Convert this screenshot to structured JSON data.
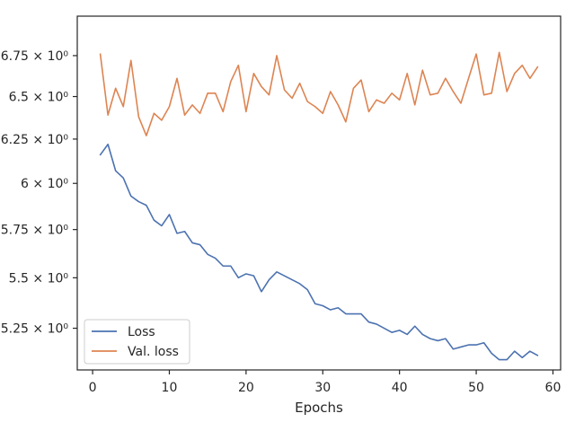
{
  "chart_data": {
    "type": "line",
    "title": "",
    "xlabel": "Epochs",
    "ylabel": "",
    "yscale": "log",
    "xlim": [
      -2,
      61
    ],
    "ylim": [
      5.052,
      7.0
    ],
    "x_ticks": [
      0,
      10,
      20,
      30,
      40,
      50,
      60
    ],
    "x_tick_labels": [
      "0",
      "10",
      "20",
      "30",
      "40",
      "50",
      "60"
    ],
    "y_ticks": [
      5.25,
      5.5,
      5.75,
      6.0,
      6.25,
      6.5,
      6.75
    ],
    "y_tick_labels": [
      "5.25 × 10⁰",
      "5.5 × 10⁰",
      "5.75 × 10⁰",
      "6 × 10⁰",
      "6.25 × 10⁰",
      "6.5 × 10⁰",
      "6.75 × 10⁰"
    ],
    "grid": false,
    "legend_position": "lower-left",
    "x": [
      1,
      2,
      3,
      4,
      5,
      6,
      7,
      8,
      9,
      10,
      11,
      12,
      13,
      14,
      15,
      16,
      17,
      18,
      19,
      20,
      21,
      22,
      23,
      24,
      25,
      26,
      27,
      28,
      29,
      30,
      31,
      32,
      33,
      34,
      35,
      36,
      37,
      38,
      39,
      40,
      41,
      42,
      43,
      44,
      45,
      46,
      47,
      48,
      49,
      50,
      51,
      52,
      53,
      54,
      55,
      56,
      57,
      58
    ],
    "series": [
      {
        "name": "Loss",
        "color": "#4c72b0",
        "values": [
          6.16,
          6.22,
          6.07,
          6.03,
          5.93,
          5.9,
          5.88,
          5.8,
          5.77,
          5.83,
          5.73,
          5.74,
          5.68,
          5.67,
          5.62,
          5.6,
          5.56,
          5.56,
          5.5,
          5.52,
          5.51,
          5.43,
          5.49,
          5.53,
          5.51,
          5.49,
          5.47,
          5.44,
          5.37,
          5.36,
          5.34,
          5.35,
          5.32,
          5.32,
          5.32,
          5.28,
          5.27,
          5.25,
          5.23,
          5.24,
          5.22,
          5.26,
          5.22,
          5.2,
          5.19,
          5.2,
          5.15,
          5.16,
          5.17,
          5.17,
          5.18,
          5.13,
          5.1,
          5.1,
          5.14,
          5.11,
          5.14,
          5.12
        ]
      },
      {
        "name": "Val. loss",
        "color": "#dd8452",
        "values": [
          6.76,
          6.39,
          6.55,
          6.44,
          6.72,
          6.38,
          6.27,
          6.4,
          6.36,
          6.44,
          6.61,
          6.39,
          6.45,
          6.4,
          6.52,
          6.52,
          6.41,
          6.59,
          6.69,
          6.41,
          6.64,
          6.56,
          6.51,
          6.75,
          6.54,
          6.49,
          6.58,
          6.47,
          6.44,
          6.4,
          6.53,
          6.45,
          6.35,
          6.55,
          6.6,
          6.41,
          6.48,
          6.46,
          6.52,
          6.48,
          6.64,
          6.45,
          6.66,
          6.51,
          6.52,
          6.61,
          6.53,
          6.46,
          6.61,
          6.76,
          6.51,
          6.52,
          6.77,
          6.53,
          6.64,
          6.69,
          6.61,
          6.68
        ]
      }
    ]
  }
}
